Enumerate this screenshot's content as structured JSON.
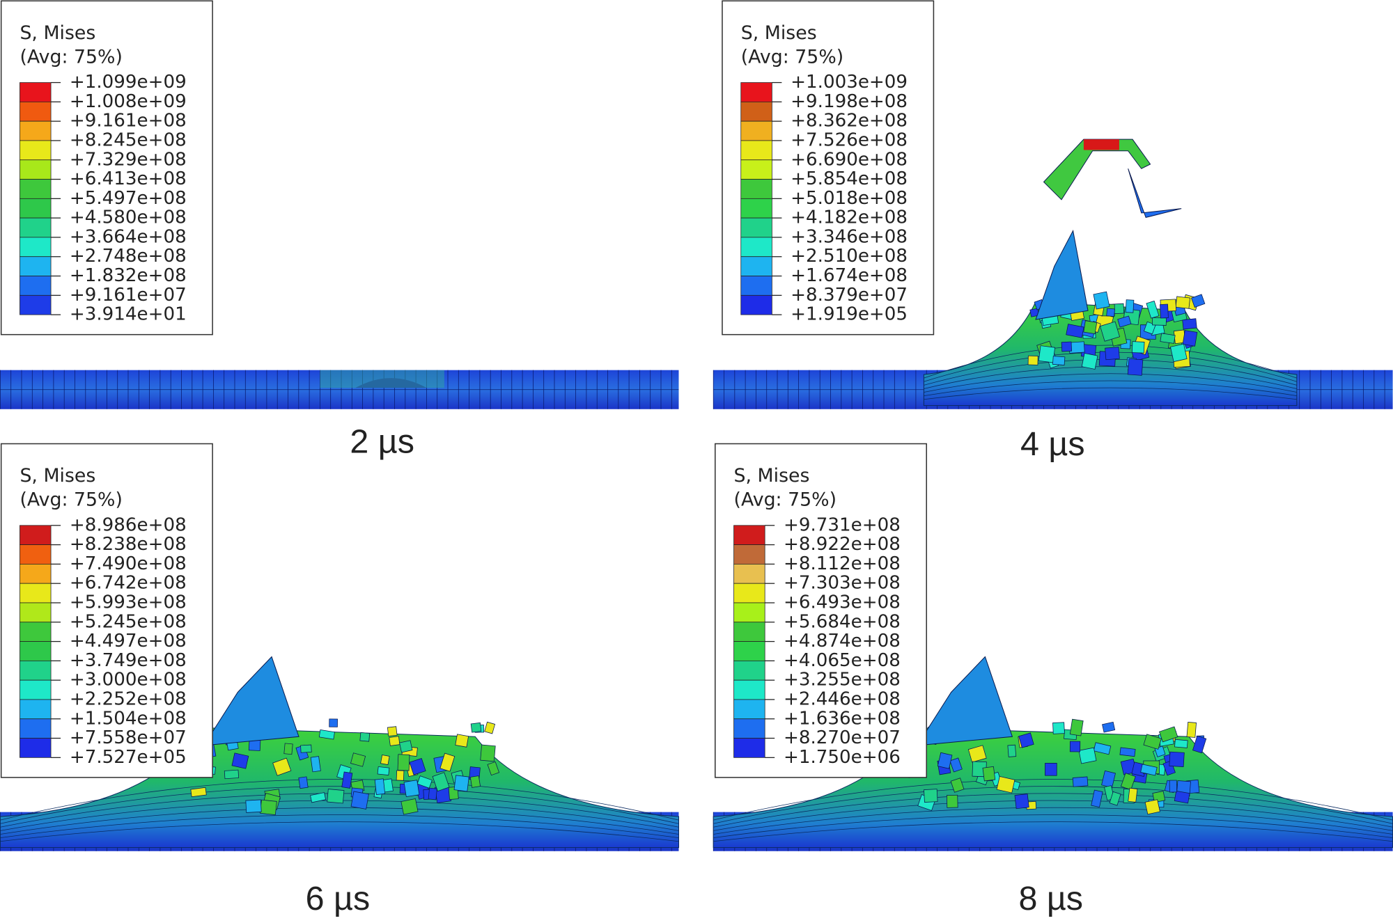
{
  "panels": [
    {
      "legend": {
        "title": "S, Mises",
        "subtitle": "(Avg: 75%)",
        "labels": [
          "+1.099e+09",
          "+1.008e+09",
          "+9.161e+08",
          "+8.245e+08",
          "+7.329e+08",
          "+6.413e+08",
          "+5.497e+08",
          "+4.580e+08",
          "+3.664e+08",
          "+2.748e+08",
          "+1.832e+08",
          "+9.161e+07",
          "+3.914e+01"
        ]
      },
      "caption": "2 µs"
    },
    {
      "legend": {
        "title": "S, Mises",
        "subtitle": "(Avg: 75%)",
        "labels": [
          "+1.003e+09",
          "+9.198e+08",
          "+8.362e+08",
          "+7.526e+08",
          "+6.690e+08",
          "+5.854e+08",
          "+5.018e+08",
          "+4.182e+08",
          "+3.346e+08",
          "+2.510e+08",
          "+1.674e+08",
          "+8.379e+07",
          "+1.919e+05"
        ]
      },
      "caption": "4 µs"
    },
    {
      "legend": {
        "title": "S, Mises",
        "subtitle": "(Avg: 75%)",
        "labels": [
          "+8.986e+08",
          "+8.238e+08",
          "+7.490e+08",
          "+6.742e+08",
          "+5.993e+08",
          "+5.245e+08",
          "+4.497e+08",
          "+3.749e+08",
          "+3.000e+08",
          "+2.252e+08",
          "+1.504e+08",
          "+7.558e+07",
          "+7.527e+05"
        ]
      },
      "caption": "6 µs"
    },
    {
      "legend": {
        "title": "S, Mises",
        "subtitle": "(Avg: 75%)",
        "labels": [
          "+9.731e+08",
          "+8.922e+08",
          "+8.112e+08",
          "+7.303e+08",
          "+6.493e+08",
          "+5.684e+08",
          "+4.874e+08",
          "+4.065e+08",
          "+3.255e+08",
          "+2.446e+08",
          "+1.636e+08",
          "+8.270e+07",
          "+1.750e+06"
        ]
      },
      "caption": "8 µs"
    }
  ]
}
